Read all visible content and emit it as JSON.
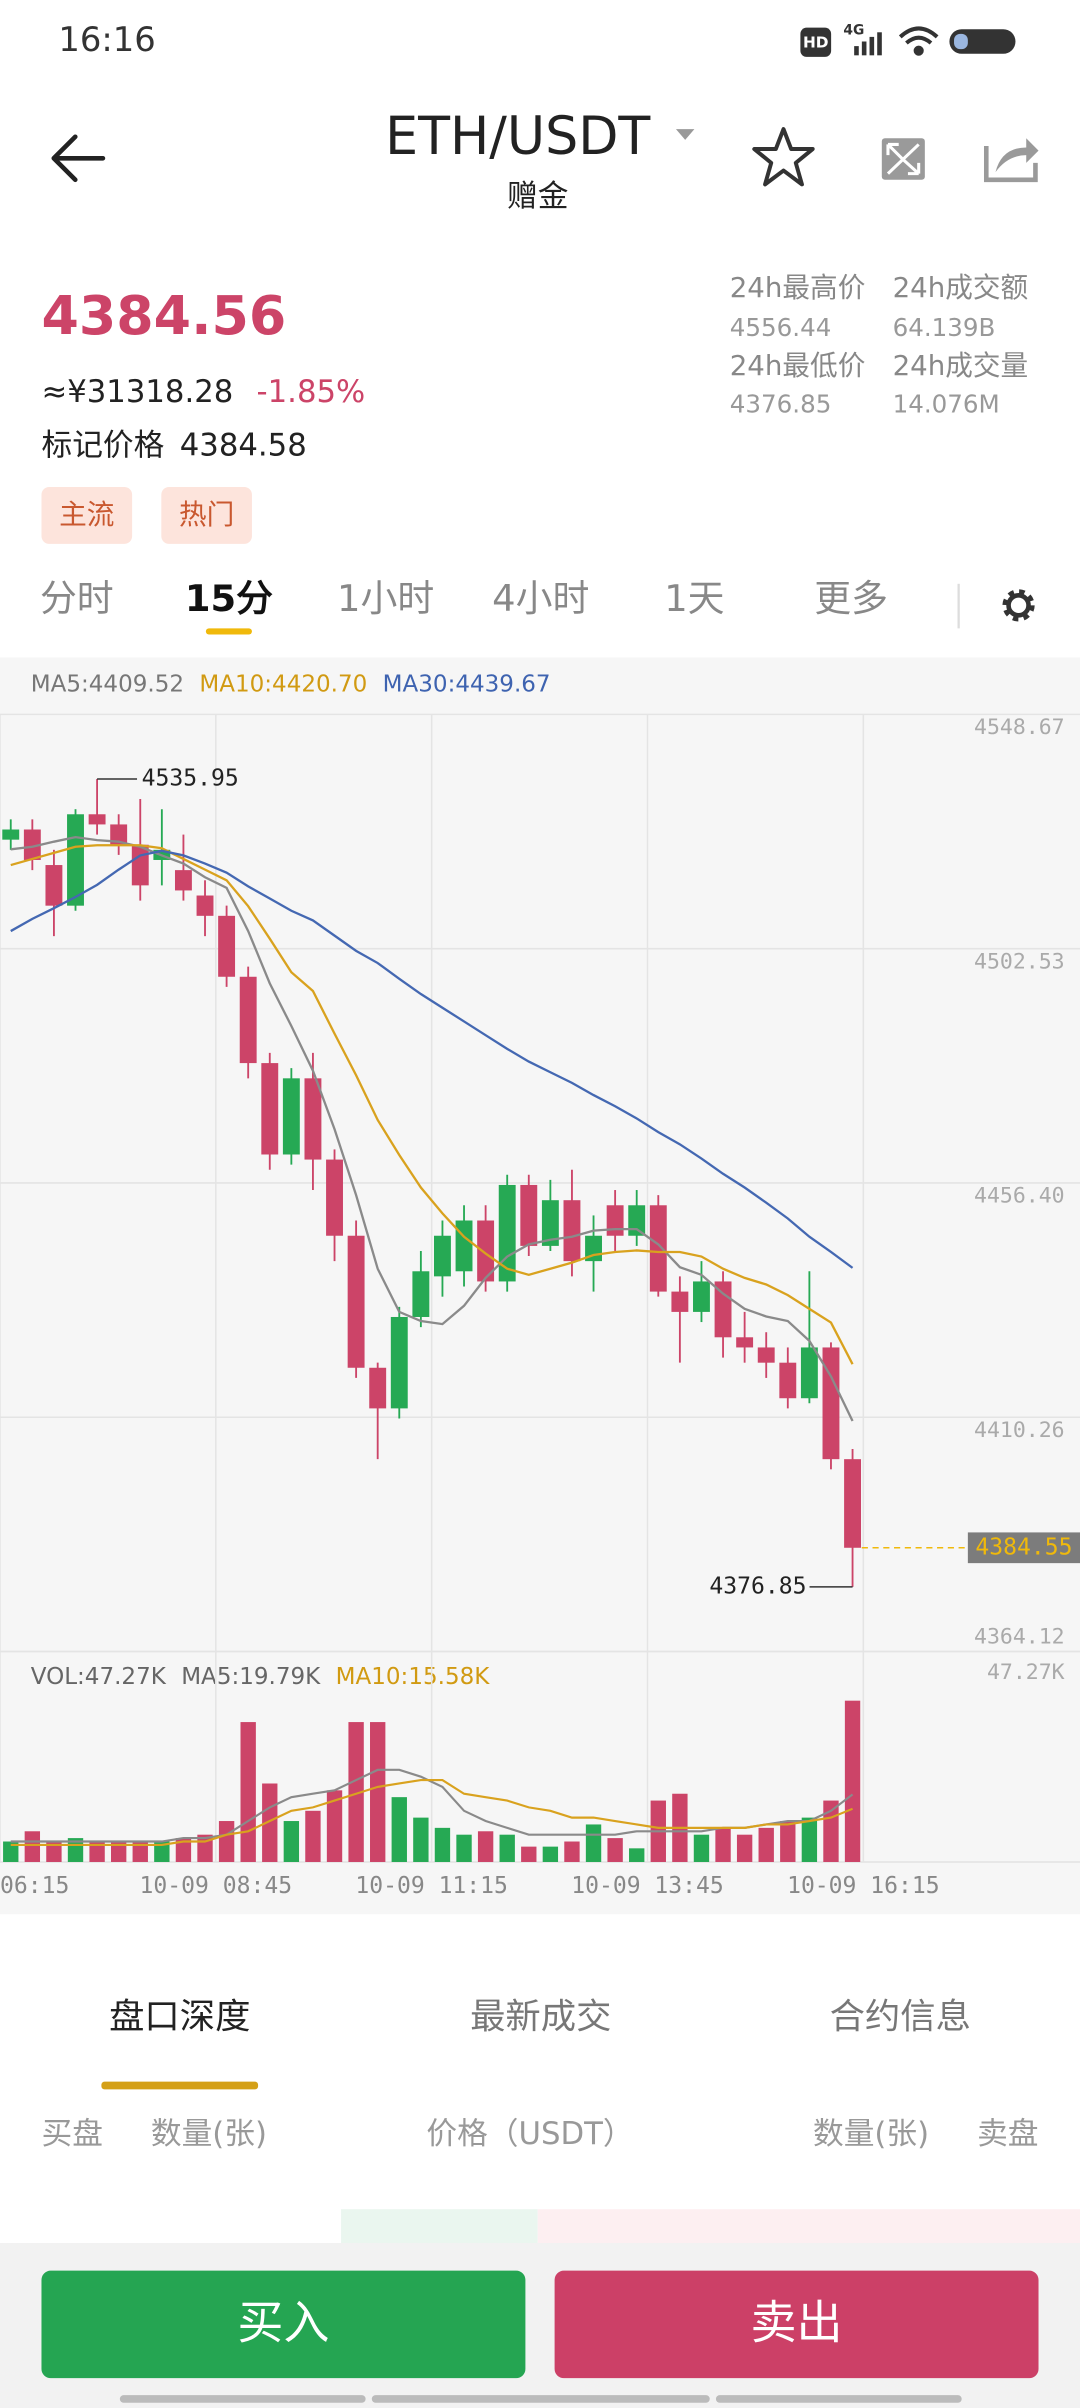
{
  "status_bar": {
    "time": "16:16",
    "hd": "HD",
    "network": "4G"
  },
  "header": {
    "pair": "ETH/USDT",
    "subtitle": "赠金"
  },
  "ticker": {
    "last_price": "4384.56",
    "cny": "≈¥31318.28",
    "change": "-1.85%",
    "mark_price_label": "标记价格",
    "mark_price": "4384.58",
    "tags": [
      "主流",
      "热门"
    ],
    "stats": [
      {
        "label": "24h最高价",
        "value": "4556.44"
      },
      {
        "label": "24h成交额",
        "value": "64.139B"
      },
      {
        "label": "24h最低价",
        "value": "4376.85"
      },
      {
        "label": "24h成交量",
        "value": "14.076M"
      }
    ]
  },
  "intervals": {
    "items": [
      "分时",
      "15分",
      "1小时",
      "4小时",
      "1天",
      "更多"
    ],
    "active": 1
  },
  "chart_data": {
    "type": "candlestick",
    "up_color": "#26a954",
    "down_color": "#cc4468",
    "ma_legend": [
      {
        "label": "MA5:4409.52",
        "color": "#777777"
      },
      {
        "label": "MA10:4420.70",
        "color": "#d19a12"
      },
      {
        "label": "MA30:4439.67",
        "color": "#3e63b0"
      }
    ],
    "open": [
      4524,
      4526,
      4519,
      4511,
      4529,
      4527,
      4523,
      4520,
      4518,
      4513,
      4509,
      4497,
      4480,
      4462,
      4477,
      4461,
      4446,
      4420,
      4412,
      4430,
      4438,
      4439,
      4449,
      4437,
      4456,
      4444,
      4453,
      4441,
      4452,
      4446,
      4452,
      4435,
      4431,
      4437,
      4426,
      4424,
      4421,
      4414,
      4424,
      4402
    ],
    "high": [
      4528,
      4528,
      4522,
      4530,
      4535.95,
      4529,
      4532,
      4530,
      4525,
      4516,
      4511,
      4499,
      4482,
      4479,
      4482,
      4463,
      4449,
      4421,
      4432,
      4443,
      4449,
      4452,
      4452,
      4458,
      4458,
      4457,
      4459,
      4450,
      4455,
      4455,
      4454,
      4438,
      4441,
      4439,
      4431,
      4427,
      4424,
      4439,
      4425,
      4404
    ],
    "low": [
      4522,
      4518,
      4505,
      4510,
      4525,
      4521,
      4512,
      4515,
      4512,
      4505,
      4495,
      4477,
      4459,
      4460,
      4455,
      4441,
      4418,
      4402,
      4410,
      4428,
      4434,
      4436,
      4435,
      4435,
      4442,
      4443,
      4438,
      4435,
      4443,
      4444,
      4434,
      4421,
      4429,
      4422,
      4421,
      4418,
      4412,
      4413,
      4400,
      4376.85
    ],
    "close": [
      4526,
      4520,
      4511,
      4529,
      4527,
      4523,
      4515,
      4522,
      4514,
      4509,
      4497,
      4480,
      4462,
      4477,
      4461,
      4446,
      4420,
      4412,
      4430,
      4439,
      4446,
      4449,
      4437,
      4456,
      4444,
      4453,
      4441,
      4446,
      4446,
      4452,
      4435,
      4431,
      4437,
      4426,
      4424,
      4421,
      4414,
      4424,
      4402,
      4384.55
    ],
    "ma_lines": [
      {
        "color": "#8a8a8a",
        "values": [
          4522.1,
          4522.6,
          4523.6,
          4524.5,
          4523.9,
          4523.6,
          4522.6,
          4520.9,
          4519.3,
          4516.6,
          4514.5,
          4506.0,
          4495.7,
          4487.3,
          4478.5,
          4467.0,
          4454.0,
          4439.5,
          4431.0,
          4429.2,
          4428.6,
          4432.2,
          4437.7,
          4441.9,
          4444.3,
          4445.2,
          4445.8,
          4447.0,
          4447.3,
          4447.3,
          4444.3,
          4439.8,
          4438.3,
          4434.6,
          4431.6,
          4430.1,
          4429.2,
          4425.3,
          4418.3,
          4409.52
        ]
      },
      {
        "color": "#d9a21e",
        "values": [
          4519.0,
          4520.2,
          4521.4,
          4522.6,
          4522.9,
          4522.9,
          4522.9,
          4522.3,
          4520.2,
          4518.1,
          4516.0,
          4510.9,
          4504.5,
          4497.9,
          4494.2,
          4485.8,
          4477.6,
          4468.8,
          4461.9,
          4455.5,
          4450.4,
          4445.8,
          4442.5,
          4439.5,
          4438.3,
          4439.5,
          4440.7,
          4442.2,
          4442.8,
          4443.1,
          4442.8,
          4442.8,
          4441.9,
          4439.5,
          4437.7,
          4436.4,
          4434.3,
          4431.6,
          4428.9,
          4420.7
        ]
      },
      {
        "color": "#4468b2",
        "values": [
          4506.0,
          4508.4,
          4510.5,
          4512.7,
          4515.1,
          4518.1,
          4520.9,
          4521.8,
          4520.9,
          4519.3,
          4517.5,
          4514.8,
          4512.4,
          4510.0,
          4508.1,
          4505.1,
          4502.1,
          4499.7,
          4496.6,
          4493.6,
          4490.9,
          4488.2,
          4485.5,
          4482.8,
          4480.3,
          4478.2,
          4476.1,
          4473.7,
          4471.5,
          4469.1,
          4466.4,
          4464.0,
          4461.2,
          4458.2,
          4455.5,
          4452.5,
          4449.4,
          4445.8,
          4442.8,
          4439.67
        ]
      }
    ],
    "ylim": [
      4364.12,
      4548.67
    ],
    "yticks": [
      4548.67,
      4502.53,
      {
        "value": 4456.4,
        "label": "4456.40"
      },
      4410.26,
      4364.12
    ],
    "grid": true,
    "xticks": [
      {
        "value": -0.5,
        "label": "06:15"
      },
      {
        "value": 9.5,
        "label": "10-09 08:45"
      },
      {
        "value": 19.5,
        "label": "10-09 11:15"
      },
      {
        "value": 29.5,
        "label": "10-09 13:45"
      },
      {
        "value": 39.5,
        "label": "10-09 16:15"
      }
    ],
    "volume": {
      "legend": [
        {
          "label": "VOL:47.27K",
          "color": "#666666"
        },
        {
          "label": "MA5:19.79K",
          "color": "#666666"
        },
        {
          "label": "MA10:15.58K",
          "color": "#d19a12"
        }
      ],
      "values": [
        6,
        9,
        6,
        7,
        6,
        6,
        6,
        6,
        7,
        8,
        12,
        41,
        23,
        12,
        15,
        21,
        41,
        41,
        19,
        13,
        10,
        8,
        9,
        8,
        4.5,
        4.5,
        6,
        11,
        7,
        4,
        18,
        20,
        8,
        10,
        8,
        10,
        12,
        13,
        18,
        47.27
      ],
      "ylim": [
        0,
        47.27
      ],
      "yticks": [
        {
          "value": 47.27,
          "label": "47.27K"
        }
      ],
      "ma_lines": [
        {
          "color": "#8a8a8a",
          "values": [
            6,
            6,
            6,
            6,
            6,
            6,
            6,
            6,
            7,
            7,
            8,
            12,
            16,
            19,
            20,
            21,
            24,
            27,
            27,
            25,
            22,
            15,
            12,
            10,
            8,
            8,
            8,
            8,
            8,
            9,
            9,
            9,
            9,
            10,
            10,
            11,
            12,
            12,
            15,
            19.79
          ]
        },
        {
          "color": "#d9a21e",
          "values": [
            5,
            5,
            5,
            5,
            5,
            5,
            5,
            5,
            6,
            6,
            8,
            9,
            12,
            15,
            16,
            18,
            20,
            22,
            23,
            24,
            24,
            20,
            19,
            18,
            16,
            15,
            13,
            13,
            12,
            11,
            10,
            10,
            10,
            10,
            10,
            11,
            11,
            12,
            13,
            15.58
          ]
        }
      ]
    }
  },
  "bottom_tabs": {
    "items": [
      "盘口深度",
      "最新成交",
      "合约信息"
    ],
    "active": 0
  },
  "order_book_header": [
    "买盘",
    "数量(张)",
    "价格（USDT）",
    "数量(张)",
    "卖盘"
  ],
  "actions": {
    "buy": "买入",
    "sell": "卖出"
  }
}
